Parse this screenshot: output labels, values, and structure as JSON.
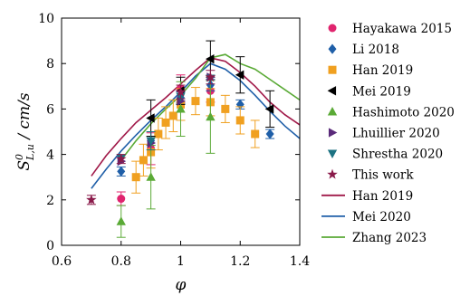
{
  "chart_data": {
    "type": "scatter",
    "xlabel": "φ",
    "ylabel_main": "S",
    "ylabel_sup": "0",
    "ylabel_sub": "L,u",
    "ylabel_unit": " / cm/s",
    "xlim": [
      0.6,
      1.4
    ],
    "ylim": [
      0,
      10
    ],
    "xticks": [
      "0.6",
      "0.8",
      "1",
      "1.2",
      "1.4"
    ],
    "yticks": [
      "0",
      "2",
      "4",
      "6",
      "8",
      "10"
    ],
    "grid": false,
    "legend_position": "right",
    "series": [
      {
        "name": "Hayakawa 2015",
        "marker": "circle",
        "color": "#e0246e",
        "points": [
          {
            "x": 0.8,
            "y": 2.05,
            "err": 0.3
          },
          {
            "x": 0.9,
            "y": 4.25,
            "err": 0.7
          },
          {
            "x": 1.0,
            "y": 6.9,
            "err": 0.6
          },
          {
            "x": 1.1,
            "y": 6.8,
            "err": 0.5
          }
        ]
      },
      {
        "name": "Li 2018",
        "marker": "diamond",
        "color": "#1f5fa8",
        "points": [
          {
            "x": 0.8,
            "y": 3.25,
            "err": 0.2
          },
          {
            "x": 0.9,
            "y": 4.6,
            "err": 0.2
          },
          {
            "x": 1.0,
            "y": 6.5,
            "err": 0.25
          },
          {
            "x": 1.1,
            "y": 7.05,
            "err": 0.25
          },
          {
            "x": 1.2,
            "y": 6.2,
            "err": 0.2
          },
          {
            "x": 1.3,
            "y": 4.9,
            "err": 0.2
          }
        ]
      },
      {
        "name": "Han 2019",
        "marker": "square",
        "color": "#f0a020",
        "points": [
          {
            "x": 0.85,
            "y": 3.0,
            "err": 0.7
          },
          {
            "x": 0.875,
            "y": 3.75,
            "err": 0.7
          },
          {
            "x": 0.9,
            "y": 4.1,
            "err": 0.7
          },
          {
            "x": 0.925,
            "y": 4.9,
            "err": 0.7
          },
          {
            "x": 0.95,
            "y": 5.4,
            "err": 0.7
          },
          {
            "x": 0.975,
            "y": 5.7,
            "err": 0.7
          },
          {
            "x": 1.0,
            "y": 6.2,
            "err": 0.7
          },
          {
            "x": 1.05,
            "y": 6.35,
            "err": 0.6
          },
          {
            "x": 1.1,
            "y": 6.3,
            "err": 0.6
          },
          {
            "x": 1.15,
            "y": 6.0,
            "err": 0.6
          },
          {
            "x": 1.2,
            "y": 5.5,
            "err": 0.6
          },
          {
            "x": 1.25,
            "y": 4.9,
            "err": 0.6
          }
        ]
      },
      {
        "name": "Mei 2019",
        "marker": "triangle-left",
        "color": "#000000",
        "points": [
          {
            "x": 0.9,
            "y": 5.6,
            "err": 0.8
          },
          {
            "x": 1.0,
            "y": 6.8,
            "err": 0.6
          },
          {
            "x": 1.1,
            "y": 8.2,
            "err": 0.8
          },
          {
            "x": 1.2,
            "y": 7.5,
            "err": 0.8
          },
          {
            "x": 1.3,
            "y": 6.0,
            "err": 0.8
          }
        ]
      },
      {
        "name": "Hashimoto 2020",
        "marker": "triangle-up",
        "color": "#5aaa36",
        "points": [
          {
            "x": 0.8,
            "y": 1.05,
            "err": 0.7
          },
          {
            "x": 0.9,
            "y": 3.0,
            "err": 1.4
          },
          {
            "x": 1.0,
            "y": 6.0,
            "err": 1.2
          },
          {
            "x": 1.1,
            "y": 5.65,
            "err": 1.6
          }
        ]
      },
      {
        "name": "Lhuillier 2020",
        "marker": "triangle-right",
        "color": "#5a2a7a",
        "points": [
          {
            "x": 0.8,
            "y": 3.7,
            "err": 0.0
          },
          {
            "x": 0.9,
            "y": 4.5,
            "err": 0.0
          },
          {
            "x": 1.0,
            "y": 6.35,
            "err": 0.0
          },
          {
            "x": 1.1,
            "y": 7.4,
            "err": 0.0
          }
        ]
      },
      {
        "name": "Shrestha 2020",
        "marker": "triangle-down",
        "color": "#1c7282",
        "points": [
          {
            "x": 0.8,
            "y": 3.85,
            "err": 0.0
          },
          {
            "x": 0.9,
            "y": 4.6,
            "err": 0.4
          },
          {
            "x": 1.0,
            "y": 6.55,
            "err": 0.0
          },
          {
            "x": 1.1,
            "y": 7.35,
            "err": 0.0
          }
        ]
      },
      {
        "name": "This work",
        "marker": "star",
        "color": "#8a1a4a",
        "points": [
          {
            "x": 0.7,
            "y": 2.0,
            "err": 0.2
          },
          {
            "x": 0.8,
            "y": 3.8,
            "err": 0.2
          },
          {
            "x": 1.0,
            "y": 6.75,
            "err": 0.3
          },
          {
            "x": 1.1,
            "y": 7.4,
            "err": 0.3
          }
        ]
      }
    ],
    "lines": [
      {
        "name": "Han 2019",
        "color": "#a01848",
        "x": [
          0.7,
          0.75,
          0.8,
          0.85,
          0.9,
          0.95,
          1.0,
          1.05,
          1.1,
          1.15,
          1.2,
          1.25,
          1.3,
          1.35,
          1.4
        ],
        "y": [
          3.05,
          3.95,
          4.7,
          5.4,
          5.95,
          6.5,
          7.1,
          7.7,
          8.25,
          8.1,
          7.6,
          7.0,
          6.3,
          5.75,
          5.3
        ]
      },
      {
        "name": "Mei 2020",
        "color": "#1f5fa8",
        "x": [
          0.7,
          0.75,
          0.8,
          0.85,
          0.9,
          0.95,
          1.0,
          1.05,
          1.1,
          1.15,
          1.2,
          1.25,
          1.3,
          1.35,
          1.4
        ],
        "y": [
          2.5,
          3.35,
          4.15,
          4.85,
          5.5,
          6.1,
          6.75,
          7.45,
          8.0,
          7.75,
          7.25,
          6.6,
          5.9,
          5.25,
          4.7
        ]
      },
      {
        "name": "Zhang 2023",
        "color": "#5aaa36",
        "x": [
          0.8,
          0.85,
          0.9,
          0.95,
          1.0,
          1.05,
          1.1,
          1.15,
          1.2,
          1.25,
          1.3,
          1.35,
          1.4
        ],
        "y": [
          3.75,
          4.6,
          5.35,
          6.0,
          6.6,
          7.35,
          8.25,
          8.4,
          8.0,
          7.75,
          7.3,
          6.85,
          6.4
        ]
      }
    ]
  }
}
